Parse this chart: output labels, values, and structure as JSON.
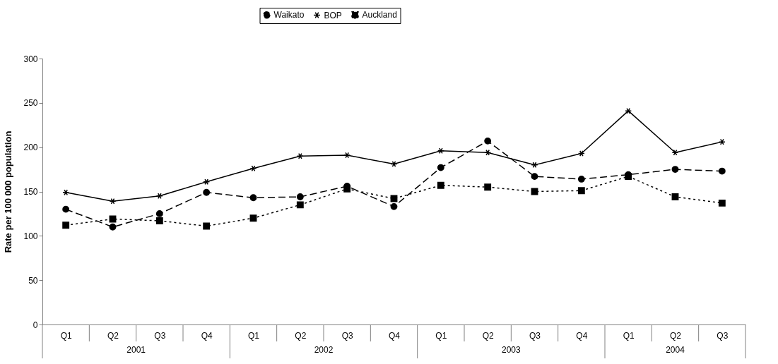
{
  "chart_data": {
    "type": "line",
    "ylabel": "Rate per 100 000 population",
    "categories": [
      "Q1",
      "Q2",
      "Q3",
      "Q4",
      "Q1",
      "Q2",
      "Q3",
      "Q4",
      "Q1",
      "Q2",
      "Q3",
      "Q4",
      "Q1",
      "Q2",
      "Q3"
    ],
    "annotations": [
      "2001",
      "2002",
      "2003",
      "2004"
    ],
    "series": [
      {
        "name": "Waikato",
        "color": "#000000",
        "marker": "circle",
        "line_style": "dashed",
        "values": [
          130,
          110,
          125,
          149,
          143,
          144,
          156,
          133,
          177,
          207,
          167,
          164,
          169,
          175,
          173
        ]
      },
      {
        "name": "BOP",
        "color": "#000000",
        "marker": "cross",
        "line_style": "solid",
        "values": [
          149,
          139,
          145,
          161,
          176,
          190,
          191,
          181,
          196,
          194,
          180,
          193,
          241,
          194,
          206
        ]
      },
      {
        "name": "Auckland",
        "color": "#000000",
        "marker": "square",
        "line_style": "dotted",
        "values": [
          112,
          119,
          117,
          111,
          120,
          135,
          153,
          142,
          157,
          155,
          150,
          151,
          167,
          144,
          137
        ]
      }
    ],
    "ylim": [
      0,
      300
    ],
    "yticks": [
      0,
      50,
      100,
      150,
      200,
      250,
      300
    ],
    "grid": false,
    "legend": "top"
  }
}
